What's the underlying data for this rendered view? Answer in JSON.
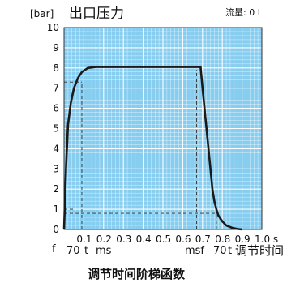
{
  "chart_data": {
    "type": "line",
    "title": "出口压力",
    "unit_label": "[bar]",
    "flow_label": "流量: 0 l",
    "caption": "调节时间阶梯函数",
    "xlim": [
      0,
      1.0
    ],
    "ylim": [
      0,
      10
    ],
    "y_ticks": [
      "0",
      "1",
      "2",
      "3",
      "4",
      "5",
      "6",
      "7",
      "8",
      "9",
      "10"
    ],
    "x_ticks": [
      {
        "x": 0.1,
        "label": "0.1"
      },
      {
        "x": 0.2,
        "label": "0.2"
      },
      {
        "x": 0.3,
        "label": "0.3"
      },
      {
        "x": 0.4,
        "label": "0.4"
      },
      {
        "x": 0.5,
        "label": "0.5"
      },
      {
        "x": 0.6,
        "label": "0.6"
      },
      {
        "x": 0.7,
        "label": "0.7"
      },
      {
        "x": 0.8,
        "label": "0.8"
      },
      {
        "x": 0.9,
        "label": "0.9"
      },
      {
        "x": 1.0,
        "label": "1.0 s"
      }
    ],
    "grid": true,
    "series": [
      {
        "color": "#1a1a1a",
        "x": [
          0.0,
          0.01,
          0.02,
          0.035,
          0.05,
          0.07,
          0.09,
          0.12,
          0.16,
          0.2,
          0.3,
          0.4,
          0.5,
          0.6,
          0.69,
          0.7,
          0.72,
          0.74,
          0.75,
          0.76,
          0.77,
          0.78,
          0.8,
          0.82,
          0.85,
          0.88,
          0.9
        ],
        "y": [
          0.0,
          3.0,
          5.2,
          6.3,
          7.0,
          7.5,
          7.8,
          8.0,
          8.05,
          8.05,
          8.05,
          8.05,
          8.05,
          8.05,
          8.05,
          7.0,
          5.0,
          3.0,
          2.0,
          1.4,
          1.0,
          0.7,
          0.4,
          0.2,
          0.08,
          0.02,
          0.0
        ]
      }
    ],
    "reference_lines": [
      {
        "style": "dashed",
        "x": [
          0.0,
          0.09
        ],
        "y": [
          7.3,
          7.3
        ]
      },
      {
        "style": "dashed",
        "x": [
          0.09,
          0.09
        ],
        "y": [
          0.0,
          7.3
        ]
      },
      {
        "style": "dashed",
        "x": [
          0.0,
          0.055
        ],
        "y": [
          1.0,
          1.0
        ]
      },
      {
        "style": "dashed",
        "x": [
          0.055,
          0.055
        ],
        "y": [
          0.0,
          1.0
        ]
      },
      {
        "style": "dashed",
        "x": [
          0.0,
          0.77
        ],
        "y": [
          0.8,
          0.8
        ]
      },
      {
        "style": "dashed",
        "x": [
          0.77,
          0.77
        ],
        "y": [
          0.0,
          0.8
        ]
      },
      {
        "style": "dashed",
        "x": [
          0.67,
          0.67
        ],
        "y": [
          0.0,
          7.9
        ]
      }
    ],
    "annotations": {
      "f_left": "f",
      "rise_70": "70",
      "rise_t": "t",
      "rise_ms": "ms",
      "fall_ms": "msf",
      "fall_70": "70",
      "fall_t": "t",
      "fall_label": "调节时间"
    }
  }
}
